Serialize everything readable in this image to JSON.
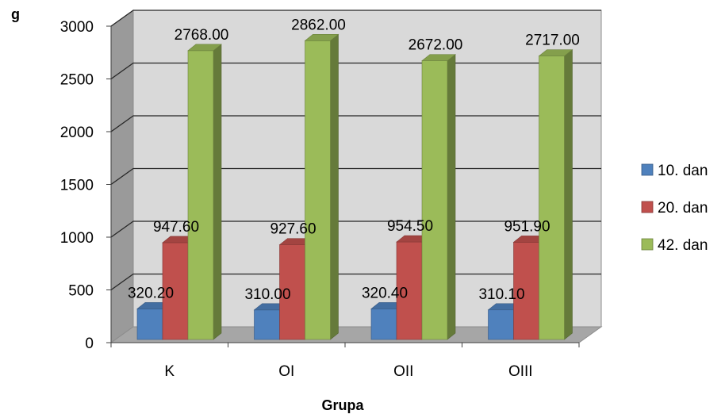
{
  "chart_data": {
    "type": "bar",
    "title": "",
    "xlabel": "Grupa",
    "ylabel": "g",
    "ylim": [
      0,
      3000
    ],
    "yticks": [
      "0",
      "500",
      "1000",
      "1500",
      "2000",
      "2500",
      "3000"
    ],
    "categories": [
      "K",
      "OI",
      "OII",
      "OIII"
    ],
    "series": [
      {
        "name": "10. dan",
        "values": [
          320.2,
          310.0,
          320.4,
          310.1
        ],
        "labels": [
          "320.20",
          "310.00",
          "320.40",
          "310.10"
        ],
        "color": "#4F81BD"
      },
      {
        "name": "20. dan",
        "values": [
          947.6,
          927.6,
          954.5,
          951.9
        ],
        "labels": [
          "947.60",
          "927.60",
          "954.50",
          "951.90"
        ],
        "color": "#C0504D"
      },
      {
        "name": "42. dan",
        "values": [
          2768.0,
          2862.0,
          2672.0,
          2717.0
        ],
        "labels": [
          "2768.00",
          "2862.00",
          "2672.00",
          "2717.00"
        ],
        "color": "#9BBB59"
      }
    ],
    "grid": true,
    "legend": "right",
    "style": "3d-clustered-column"
  }
}
